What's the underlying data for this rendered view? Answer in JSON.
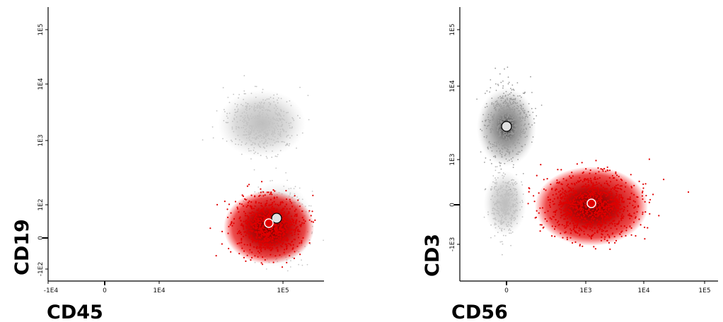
{
  "chart_data": [
    {
      "type": "scatter",
      "xlabel": "CD45",
      "ylabel": "CD19",
      "x_ticks": [
        "-1E4",
        "0",
        "1E4",
        "1E5"
      ],
      "y_ticks": [
        "1E5",
        "1E4",
        "1E3",
        "1E2",
        "0",
        "-1E2"
      ],
      "grid": false,
      "series": [
        {
          "color": "#c8c8c8",
          "clusters": [
            {
              "x": "1E4-1E5",
              "y": "~3E3",
              "kind": "density",
              "label": ""
            },
            {
              "x": "~1E5",
              "y": "~1E2",
              "kind": "density",
              "label": ""
            }
          ],
          "centroid": {
            "x": "~1E5",
            "y": "~1E2"
          }
        },
        {
          "color": "#e00000",
          "clusters": [
            {
              "x": "~1E5",
              "y": "~1E2",
              "kind": "density",
              "label": ""
            }
          ],
          "centroid": {
            "x": "~1E5",
            "y": "~1E2"
          }
        }
      ]
    },
    {
      "type": "scatter",
      "xlabel": "CD56",
      "ylabel": "CD3",
      "x_ticks": [
        "0",
        "1E3",
        "1E4",
        "1E5"
      ],
      "y_ticks": [
        "1E5",
        "1E4",
        "1E3",
        "0",
        "-1E3"
      ],
      "grid": false,
      "series": [
        {
          "color": "#a0a0a0",
          "clusters": [
            {
              "x": "~0",
              "y": "~5E3",
              "kind": "density",
              "label": ""
            },
            {
              "x": "~0",
              "y": "~0",
              "kind": "density",
              "label": ""
            }
          ],
          "centroid": {
            "x": "0",
            "y": "~5E3"
          }
        },
        {
          "color": "#e00000",
          "clusters": [
            {
              "x": "~1.2E3",
              "y": "~0",
              "kind": "density",
              "label": ""
            }
          ],
          "centroid": {
            "x": "~1.2E3",
            "y": "0"
          }
        }
      ]
    }
  ]
}
